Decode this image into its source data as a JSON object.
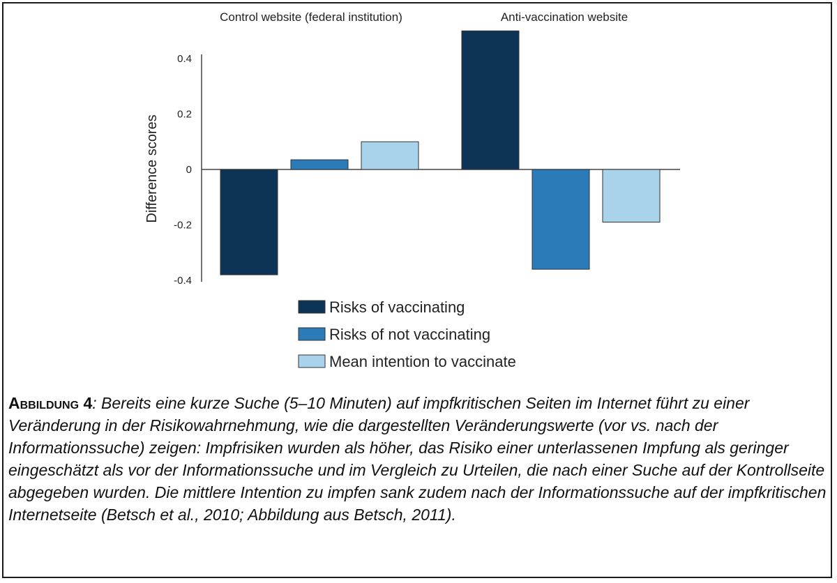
{
  "chart_data": {
    "type": "bar",
    "groups": [
      "Control website (federal institution)",
      "Anti-vaccination website"
    ],
    "series": [
      {
        "name": "Risks of vaccinating",
        "values": [
          -0.38,
          0.5
        ],
        "color": "#0d3357"
      },
      {
        "name": "Risks of not vaccinating",
        "values": [
          0.035,
          -0.36
        ],
        "color": "#2b7bb8"
      },
      {
        "name": "Mean intention to vaccinate",
        "values": [
          0.1,
          -0.19
        ],
        "color": "#a8d3ea"
      }
    ],
    "ylabel": "Difference scores",
    "ylim": [
      -0.4,
      0.4
    ],
    "yticks": [
      0.4,
      0.2,
      0,
      -0.2,
      -0.4
    ],
    "ytick_labels": [
      "0.4",
      "0.2",
      "0",
      "-0.2",
      "-0.4"
    ],
    "legend_position": "bottom"
  },
  "caption": {
    "label": "Abbildung 4",
    "text": ": Bereits eine kurze Suche (5–10 Minuten) auf impfkritischen Seiten im Internet führt zu einer Veränderung in der Risikowahrnehmung, wie die dargestellten Veränderungswerte (vor vs. nach der Informationssuche) zeigen: Impfrisiken wurden als höher, das Risiko einer unterlassenen Impfung als geringer eingeschätzt als vor der Informationssuche und im Vergleich zu Urteilen, die nach einer Suche auf der Kontrollseite abgegeben wurden. Die mittlere Intention zu impfen sank zudem nach der Informationssuche auf der impfkritischen Internetseite (Betsch et al., 2010; Abbildung aus Betsch, 2011)."
  }
}
